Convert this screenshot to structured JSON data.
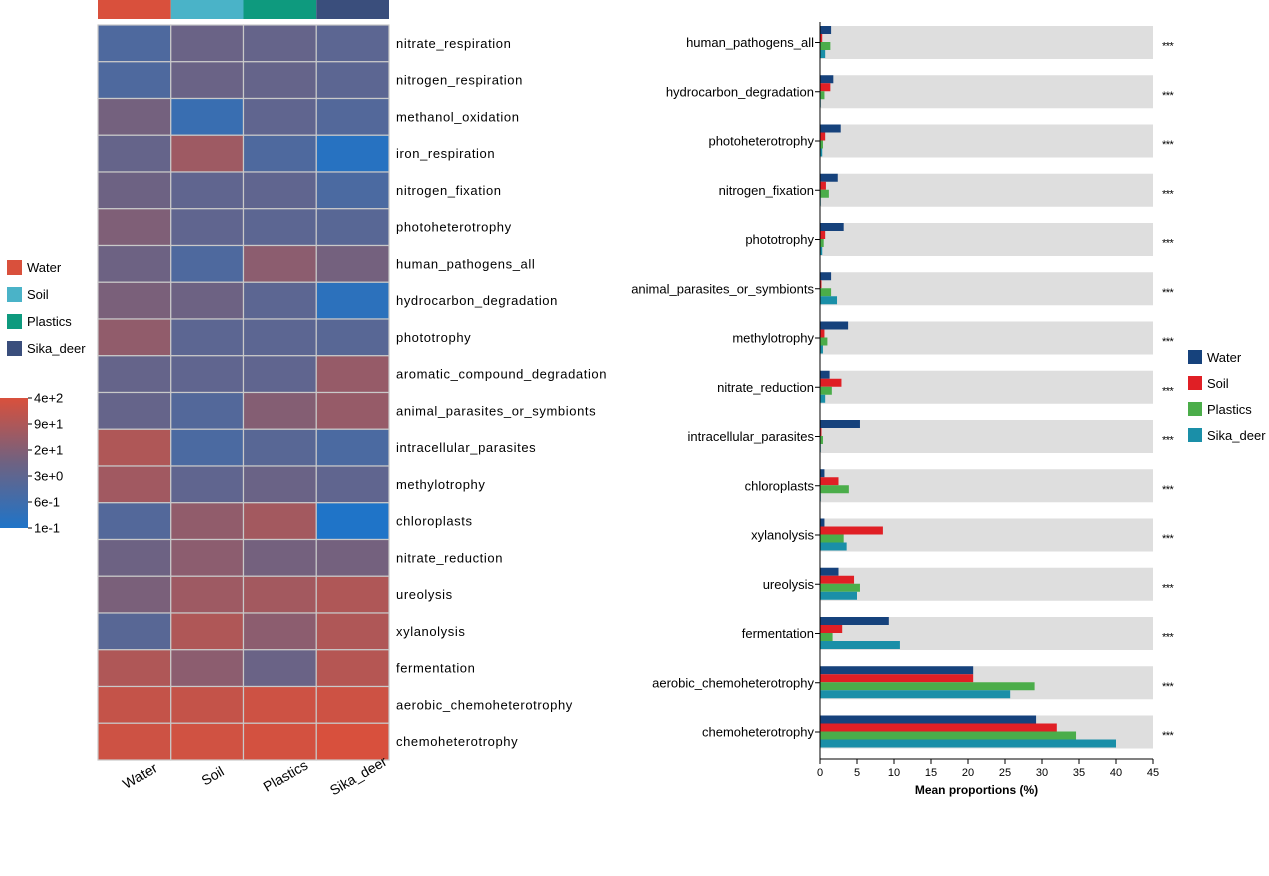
{
  "groups": [
    "Water",
    "Soil",
    "Plastics",
    "Sika_deer"
  ],
  "group_colors": {
    "Water": "#d9503c",
    "Soil": "#4ab3c8",
    "Plastics": "#0e9a7e",
    "Sika_deer": "#3a4e7c"
  },
  "colorbar": {
    "labels": [
      "4e+2",
      "9e+1",
      "2e+1",
      "3e+0",
      "6e-1",
      "1e-1"
    ],
    "colors": [
      "#d9503c",
      "#6e6282",
      "#1f74c8"
    ]
  },
  "chart_data": [
    {
      "type": "heatmap",
      "title": "",
      "columns": [
        "Water",
        "Soil",
        "Plastics",
        "Sika_deer"
      ],
      "rows": [
        "nitrate_respiration",
        "nitrogen_respiration",
        "methanol_oxidation",
        "iron_respiration",
        "nitrogen_fixation",
        "photoheterotrophy",
        "human_pathogens_all",
        "hydrocarbon_degradation",
        "phototrophy",
        "aromatic_compound_degradation",
        "animal_parasites_or_symbionts",
        "intracellular_parasites",
        "methylotrophy",
        "chloroplasts",
        "nitrate_reduction",
        "ureolysis",
        "xylanolysis",
        "fermentation",
        "aerobic_chemoheterotrophy",
        "chemoheterotrophy"
      ],
      "scale": "log10",
      "range": [
        0.1,
        400
      ],
      "values": [
        [
          1.2,
          5,
          4,
          2.5
        ],
        [
          1.2,
          5,
          4,
          2.5
        ],
        [
          8,
          0.4,
          3,
          1.5
        ],
        [
          4,
          40,
          1.2,
          0.15
        ],
        [
          6,
          3,
          3,
          1
        ],
        [
          12,
          3,
          2.5,
          2
        ],
        [
          6,
          1.2,
          20,
          8
        ],
        [
          10,
          6,
          2.5,
          0.2
        ],
        [
          25,
          2.5,
          2.5,
          2
        ],
        [
          4,
          3,
          3,
          30
        ],
        [
          4,
          1.5,
          15,
          30
        ],
        [
          80,
          1,
          2,
          1
        ],
        [
          45,
          3,
          5,
          3
        ],
        [
          1.5,
          25,
          50,
          0.1
        ],
        [
          6,
          20,
          8,
          8
        ],
        [
          10,
          40,
          50,
          80
        ],
        [
          2,
          80,
          20,
          80
        ],
        [
          80,
          20,
          5,
          100
        ],
        [
          180,
          180,
          250,
          250
        ],
        [
          250,
          280,
          320,
          380
        ]
      ]
    },
    {
      "type": "bar",
      "orientation": "horizontal",
      "title": "",
      "xlabel": "Mean proportions (%)",
      "xlim": [
        0,
        45
      ],
      "xticks": [
        0,
        5,
        10,
        15,
        20,
        25,
        30,
        35,
        40,
        45
      ],
      "significance": "***",
      "categories": [
        "human_pathogens_all",
        "hydrocarbon_degradation",
        "photoheterotrophy",
        "nitrogen_fixation",
        "phototrophy",
        "animal_parasites_or_symbionts",
        "methylotrophy",
        "nitrate_reduction",
        "intracellular_parasites",
        "chloroplasts",
        "xylanolysis",
        "ureolysis",
        "fermentation",
        "aerobic_chemoheterotrophy",
        "chemoheterotrophy"
      ],
      "series": [
        {
          "name": "Water",
          "color": "#16427c",
          "values": [
            1.5,
            1.8,
            2.8,
            2.4,
            3.2,
            1.5,
            3.8,
            1.3,
            5.4,
            0.6,
            0.6,
            2.5,
            9.3,
            20.7,
            29.2
          ]
        },
        {
          "name": "Soil",
          "color": "#e01f25",
          "values": [
            0.3,
            1.4,
            0.7,
            0.8,
            0.7,
            0.2,
            0.6,
            2.9,
            0.2,
            2.5,
            8.5,
            4.6,
            3.0,
            20.7,
            32.0
          ]
        },
        {
          "name": "Plastics",
          "color": "#4bad4a",
          "values": [
            1.4,
            0.6,
            0.4,
            1.2,
            0.5,
            1.5,
            1.0,
            1.6,
            0.4,
            3.9,
            3.2,
            5.4,
            1.7,
            29.0,
            34.6
          ]
        },
        {
          "name": "Sika_deer",
          "color": "#1a8fa8",
          "values": [
            0.7,
            0.1,
            0.3,
            0.1,
            0.3,
            2.3,
            0.4,
            0.7,
            0.1,
            0.1,
            3.6,
            5.0,
            10.8,
            25.7,
            40.0
          ]
        }
      ]
    }
  ]
}
